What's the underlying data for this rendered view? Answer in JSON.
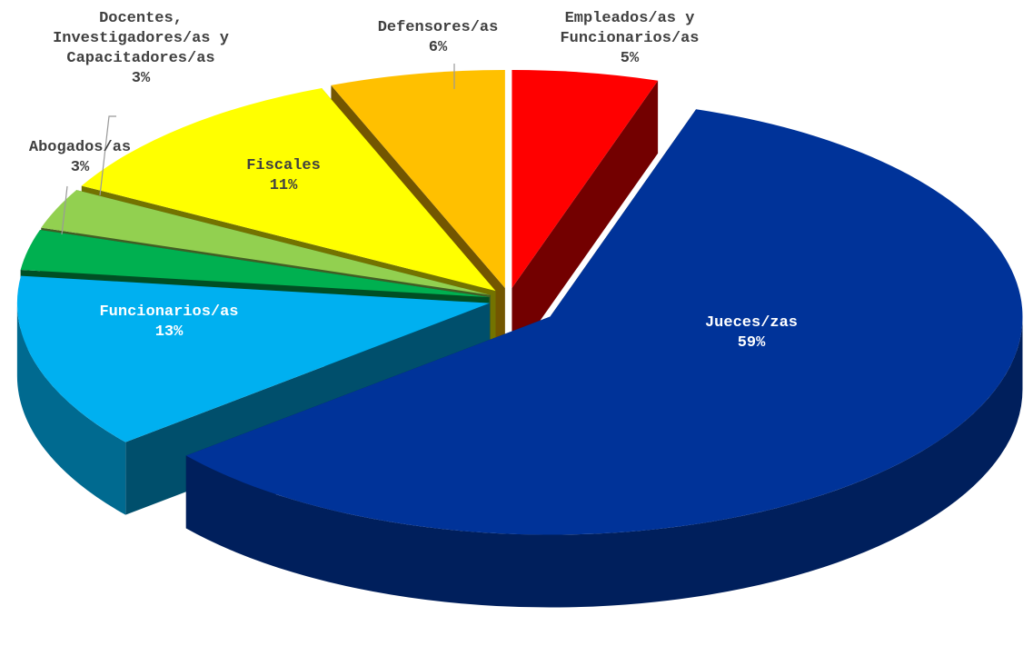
{
  "chart_data": {
    "type": "pie",
    "categories": [
      "Empleados/as y Funcionarios/as",
      "Jueces/zas",
      "Funcionarios/as",
      "Abogados/as",
      "Docentes, Investigadores/as y Capacitadores/as",
      "Fiscales",
      "Defensores/as"
    ],
    "values": [
      5,
      59,
      13,
      3,
      3,
      11,
      6
    ],
    "value_labels": [
      "5%",
      "59%",
      "13%",
      "3%",
      "3%",
      "11%",
      "6%"
    ],
    "colors": [
      "#ff0000",
      "#003399",
      "#00b0f0",
      "#00b050",
      "#92d050",
      "#ffff00",
      "#ffc000"
    ],
    "three_d": true
  }
}
